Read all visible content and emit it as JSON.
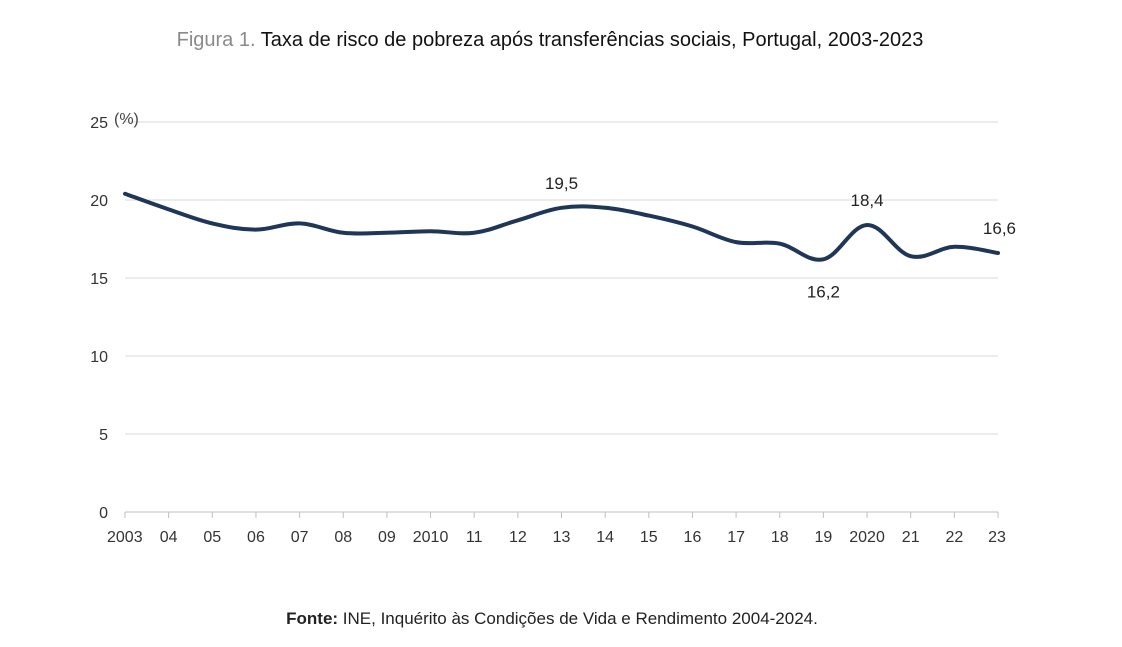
{
  "title": {
    "prefix": "Figura 1.",
    "text": "Taxa de risco de pobreza após transferências sociais, Portugal, 2003-2023"
  },
  "source": {
    "label": "Fonte:",
    "text": "INE, Inquérito às Condições de Vida e Rendimento 2004-2024."
  },
  "colors": {
    "line": "#1f3658",
    "grid": "#d9d9d9",
    "axis": "#bfbfbf"
  },
  "chart_data": {
    "type": "line",
    "title": "Taxa de risco de pobreza após transferências sociais, Portugal, 2003-2023",
    "ylabel": "(%)",
    "xlabel": "",
    "ylim": [
      0,
      25
    ],
    "yticks": [
      "0",
      "5",
      "10",
      "15",
      "20",
      "25"
    ],
    "grid": true,
    "categories": [
      "2003",
      "04",
      "05",
      "06",
      "07",
      "08",
      "09",
      "2010",
      "11",
      "12",
      "13",
      "14",
      "15",
      "16",
      "17",
      "18",
      "19",
      "2020",
      "21",
      "22",
      "23"
    ],
    "series": [
      {
        "name": "Taxa de risco de pobreza",
        "values": [
          20.4,
          19.4,
          18.5,
          18.1,
          18.5,
          17.9,
          17.9,
          18.0,
          17.9,
          18.7,
          19.5,
          19.5,
          19.0,
          18.3,
          17.3,
          17.2,
          16.2,
          18.4,
          16.4,
          17.0,
          16.6
        ]
      }
    ],
    "annotations": [
      {
        "index": 10,
        "text": "19,5",
        "position": "above"
      },
      {
        "index": 16,
        "text": "16,2",
        "position": "below"
      },
      {
        "index": 17,
        "text": "18,4",
        "position": "above"
      },
      {
        "index": 20,
        "text": "16,6",
        "position": "above"
      }
    ]
  }
}
